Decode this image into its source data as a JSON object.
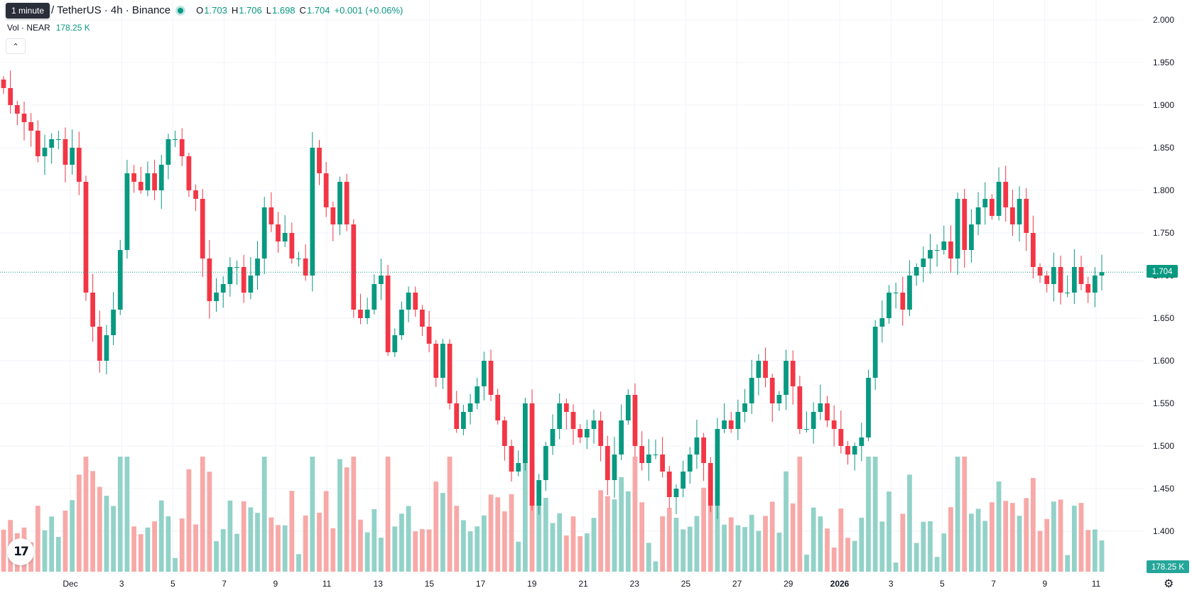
{
  "tooltip": "1 minute",
  "symbol": "/ TetherUS · 4h · Binance",
  "ohlc": {
    "o_label": "O",
    "o": "1.703",
    "h_label": "H",
    "h": "1.706",
    "l_label": "L",
    "l": "1.698",
    "c_label": "C",
    "c": "1.704",
    "change": "+0.001 (+0.06%)"
  },
  "volume": {
    "label": "Vol · NEAR",
    "value": "178.25 K"
  },
  "price_badge": "1.704",
  "volume_badge": "178.25 K",
  "logo_text": "17",
  "colors": {
    "up": "#089981",
    "down": "#f23645",
    "up_vol": "#92d2c8",
    "down_vol": "#f7a9a7",
    "grid": "#f0f3fa",
    "text": "#131722"
  },
  "chart_data": {
    "type": "candlestick",
    "interval": "4h",
    "y_ticks": [
      "2.000",
      "1.950",
      "1.900",
      "1.850",
      "1.800",
      "1.750",
      "1.700",
      "1.650",
      "1.600",
      "1.550",
      "1.500",
      "1.450",
      "1.400"
    ],
    "ylim": [
      1.375,
      2.0
    ],
    "x_ticks": [
      "Dec",
      "3",
      "5",
      "7",
      "9",
      "11",
      "13",
      "15",
      "17",
      "19",
      "21",
      "23",
      "25",
      "27",
      "29",
      "2026",
      "3",
      "5",
      "7",
      "9",
      "11"
    ],
    "last_price": 1.704,
    "candle_closes": [
      1.92,
      1.9,
      1.89,
      1.88,
      1.87,
      1.84,
      1.85,
      1.86,
      1.86,
      1.83,
      1.85,
      1.81,
      1.68,
      1.64,
      1.6,
      1.63,
      1.66,
      1.73,
      1.82,
      1.81,
      1.8,
      1.82,
      1.8,
      1.83,
      1.86,
      1.86,
      1.84,
      1.8,
      1.79,
      1.72,
      1.67,
      1.68,
      1.69,
      1.71,
      1.71,
      1.68,
      1.7,
      1.72,
      1.78,
      1.76,
      1.74,
      1.75,
      1.72,
      1.72,
      1.7,
      1.85,
      1.82,
      1.78,
      1.76,
      1.81,
      1.76,
      1.66,
      1.65,
      1.66,
      1.69,
      1.7,
      1.61,
      1.63,
      1.66,
      1.68,
      1.66,
      1.64,
      1.62,
      1.58,
      1.62,
      1.55,
      1.52,
      1.54,
      1.55,
      1.57,
      1.6,
      1.56,
      1.53,
      1.5,
      1.47,
      1.48,
      1.55,
      1.43,
      1.46,
      1.5,
      1.52,
      1.55,
      1.54,
      1.52,
      1.51,
      1.52,
      1.53,
      1.5,
      1.46,
      1.49,
      1.53,
      1.56,
      1.5,
      1.48,
      1.49,
      1.49,
      1.47,
      1.44,
      1.45,
      1.47,
      1.49,
      1.51,
      1.48,
      1.43,
      1.52,
      1.53,
      1.52,
      1.54,
      1.55,
      1.58,
      1.6,
      1.58,
      1.55,
      1.56,
      1.6,
      1.57,
      1.52,
      1.52,
      1.54,
      1.55,
      1.53,
      1.52,
      1.5,
      1.49,
      1.5,
      1.51,
      1.58,
      1.64,
      1.65,
      1.68,
      1.68,
      1.66,
      1.7,
      1.71,
      1.72,
      1.73,
      1.73,
      1.74,
      1.72,
      1.79,
      1.73,
      1.76,
      1.78,
      1.79,
      1.77,
      1.81,
      1.78,
      1.76,
      1.79,
      1.75,
      1.71,
      1.7,
      1.69,
      1.71,
      1.68,
      1.68,
      1.71,
      1.69,
      1.68,
      1.7,
      1.704
    ],
    "volume_max_k": 1300
  }
}
